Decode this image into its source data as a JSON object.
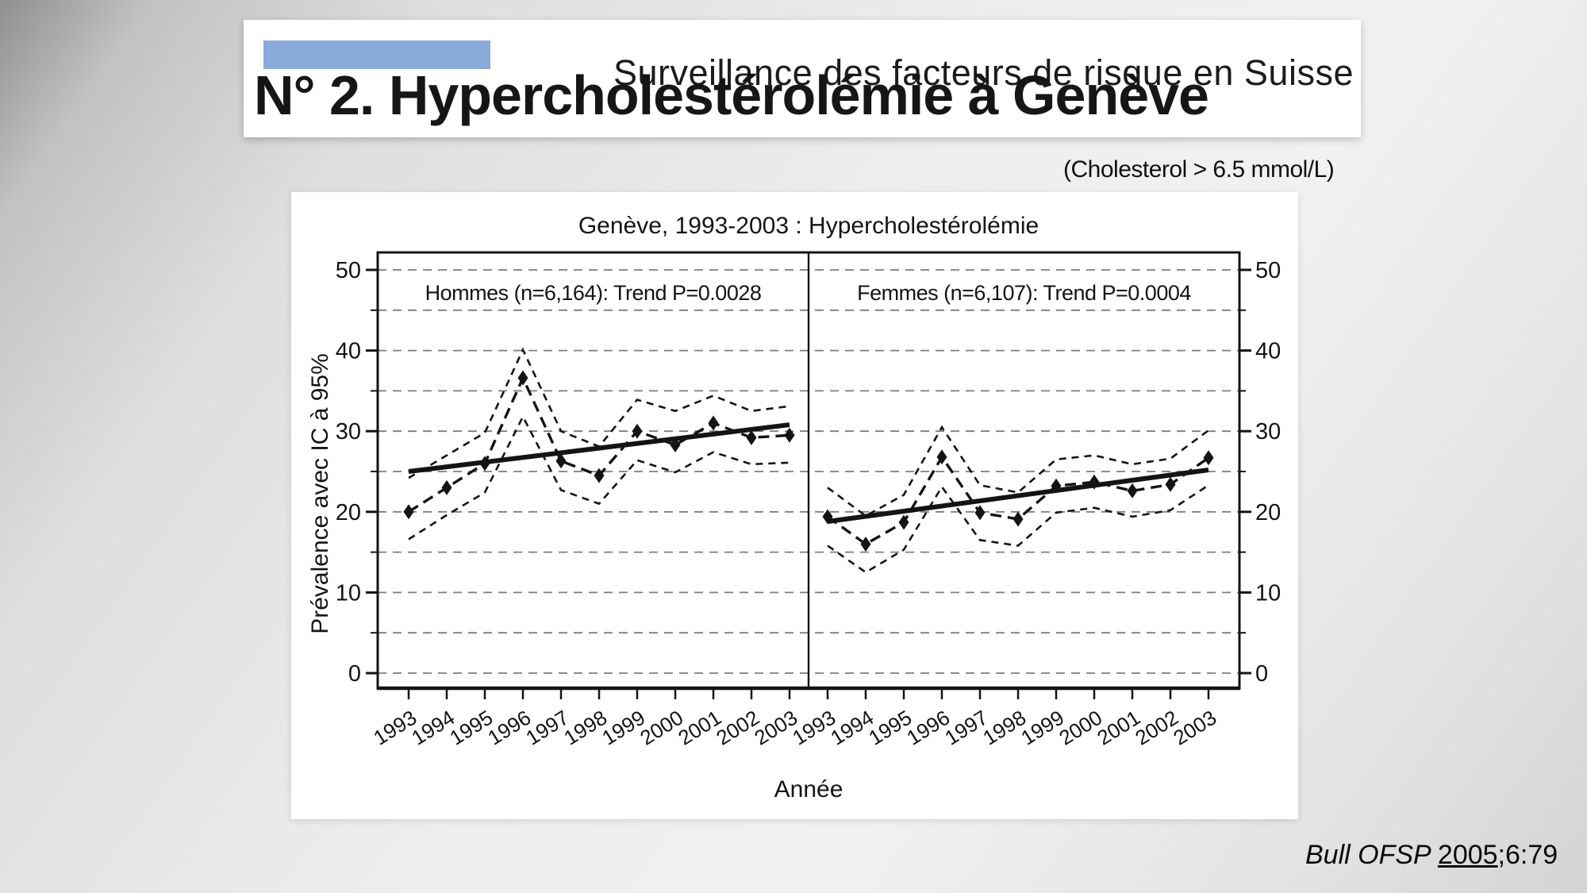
{
  "header": {
    "kicker": "Surveillance des facteurs de risque en Suisse",
    "title": "N° 2. Hypercholestérolémie à Genève"
  },
  "note": {
    "text": "(Cholesterol > 6.5 mmol/L)"
  },
  "citation": {
    "prefix": "Bull OFSP ",
    "year": "2005",
    "suffix": ";6:79"
  },
  "colors": {
    "accent_blue": "#8aaad9",
    "ink": "#141414",
    "grid_gray": "#7d7d7d"
  },
  "chart_data": {
    "type": "line",
    "title": "Genève, 1993-2003 : Hypercholestérolémie",
    "xlabel": "Année",
    "ylabel": "Prévalence avec IC à 95%",
    "ylim": [
      0,
      52
    ],
    "yticks_major": [
      0,
      10,
      20,
      30,
      40,
      50
    ],
    "yticks_minor": [
      5,
      15,
      25,
      35,
      45
    ],
    "grid": "dashed-horizontal-every-5",
    "legend": "none",
    "x": [
      1993,
      1994,
      1995,
      1996,
      1997,
      1998,
      1999,
      2000,
      2001,
      2002,
      2003
    ],
    "panels": [
      {
        "id": "hommes",
        "label": "Hommes (n=6,164): Trend P=0.0028",
        "values": [
          20.0,
          23.0,
          26.0,
          36.6,
          26.3,
          24.5,
          30.0,
          28.3,
          31.0,
          29.2,
          29.5
        ],
        "ci_upper": [
          24.2,
          27.0,
          29.8,
          40.1,
          30.0,
          28.1,
          33.9,
          32.5,
          34.4,
          32.5,
          33.1
        ],
        "ci_lower": [
          16.6,
          19.6,
          22.4,
          31.8,
          22.7,
          21.0,
          26.4,
          24.9,
          27.4,
          25.9,
          26.1
        ],
        "trend": [
          25.0,
          30.8
        ]
      },
      {
        "id": "femmes",
        "label": "Femmes (n=6,107): Trend P=0.0004",
        "values": [
          19.4,
          16.0,
          18.7,
          26.8,
          19.9,
          19.1,
          23.2,
          23.7,
          22.6,
          23.4,
          26.7
        ],
        "ci_upper": [
          23.0,
          19.5,
          22.1,
          30.5,
          23.3,
          22.4,
          26.5,
          27.0,
          25.9,
          26.6,
          30.1
        ],
        "ci_lower": [
          15.8,
          12.5,
          15.3,
          23.1,
          16.5,
          15.8,
          19.9,
          20.5,
          19.4,
          20.2,
          23.3
        ],
        "trend": [
          18.8,
          25.2
        ]
      }
    ]
  }
}
